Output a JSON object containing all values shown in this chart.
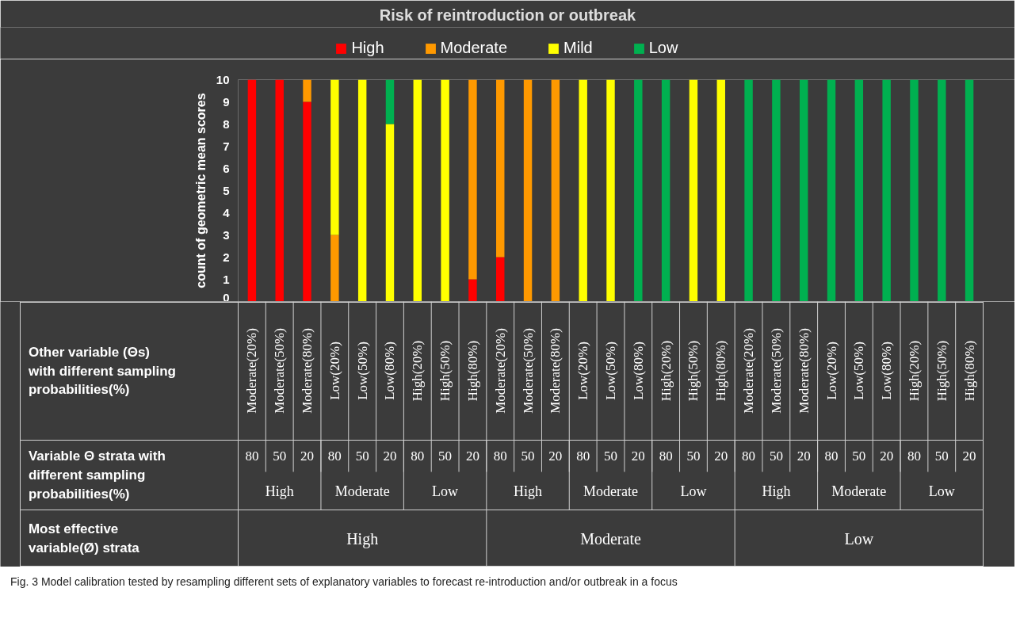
{
  "chart_data": {
    "type": "bar",
    "title": "Risk of reintroduction or outbreak",
    "ylabel": "count of geometric mean scores",
    "categories": [
      "Moderate(20%)",
      "Moderate(50%)",
      "Moderate(80%)",
      "Low(20%)",
      "Low(50%)",
      "Low(80%)",
      "High(20%)",
      "High(50%)",
      "High(80%)",
      "Moderate(20%)",
      "Moderate(50%)",
      "Moderate(80%)",
      "Low(20%)",
      "Low(50%)",
      "Low(80%)",
      "High(20%)",
      "High(50%)",
      "High(80%)",
      "Moderate(20%)",
      "Moderate(50%)",
      "Moderate(80%)",
      "Low(20%)",
      "Low(50%)",
      "Low(80%)",
      "High(20%)",
      "High(50%)",
      "High(80%)"
    ],
    "series": [
      {
        "name": "High",
        "color": "#ff0000",
        "values": [
          10,
          10,
          9,
          0,
          0,
          0,
          0,
          0,
          1,
          2,
          0,
          0,
          0,
          0,
          0,
          0,
          0,
          0,
          0,
          0,
          0,
          0,
          0,
          0,
          0,
          0,
          0
        ]
      },
      {
        "name": "Moderate",
        "color": "#ff9900",
        "values": [
          0,
          0,
          1,
          3,
          0,
          0,
          0,
          0,
          9,
          8,
          10,
          10,
          0,
          0,
          0,
          0,
          0,
          0,
          0,
          0,
          0,
          0,
          0,
          0,
          0,
          0,
          0
        ]
      },
      {
        "name": "Mild",
        "color": "#ffff00",
        "values": [
          0,
          0,
          0,
          7,
          10,
          8,
          10,
          10,
          0,
          0,
          0,
          0,
          10,
          10,
          0,
          0,
          10,
          10,
          0,
          0,
          0,
          0,
          0,
          0,
          0,
          0,
          0
        ]
      },
      {
        "name": "Low",
        "color": "#00b050",
        "values": [
          0,
          0,
          0,
          0,
          0,
          2,
          0,
          0,
          0,
          0,
          0,
          0,
          0,
          0,
          10,
          10,
          0,
          0,
          10,
          10,
          10,
          10,
          10,
          10,
          10,
          10,
          10
        ]
      }
    ],
    "stacked": true,
    "ylim": [
      0,
      10
    ],
    "yticks": [
      0,
      1,
      2,
      3,
      4,
      5,
      6,
      7,
      8,
      9,
      10
    ],
    "legend": "top",
    "annotations": [
      "Other variable (Θs)\nwith different sampling\nprobabilities(%)",
      "Variable Θ strata with\ndifferent sampling\nprobabilities(%)",
      "Most effective\nvariable(Ø) strata",
      "80",
      "50",
      "20",
      "80",
      "50",
      "20",
      "80",
      "50",
      "20",
      "80",
      "50",
      "20",
      "80",
      "50",
      "20",
      "80",
      "50",
      "20",
      "80",
      "50",
      "20",
      "80",
      "50",
      "20",
      "80",
      "50",
      "20",
      "High",
      "Moderate",
      "Low",
      "High",
      "Moderate",
      "Low",
      "High",
      "Moderate",
      "Low",
      "High",
      "Moderate",
      "Low",
      "Fig. 3  Model calibration tested by resampling different sets of explanatory variables to forecast re-introduction and/or outbreak in a focus"
    ]
  }
}
